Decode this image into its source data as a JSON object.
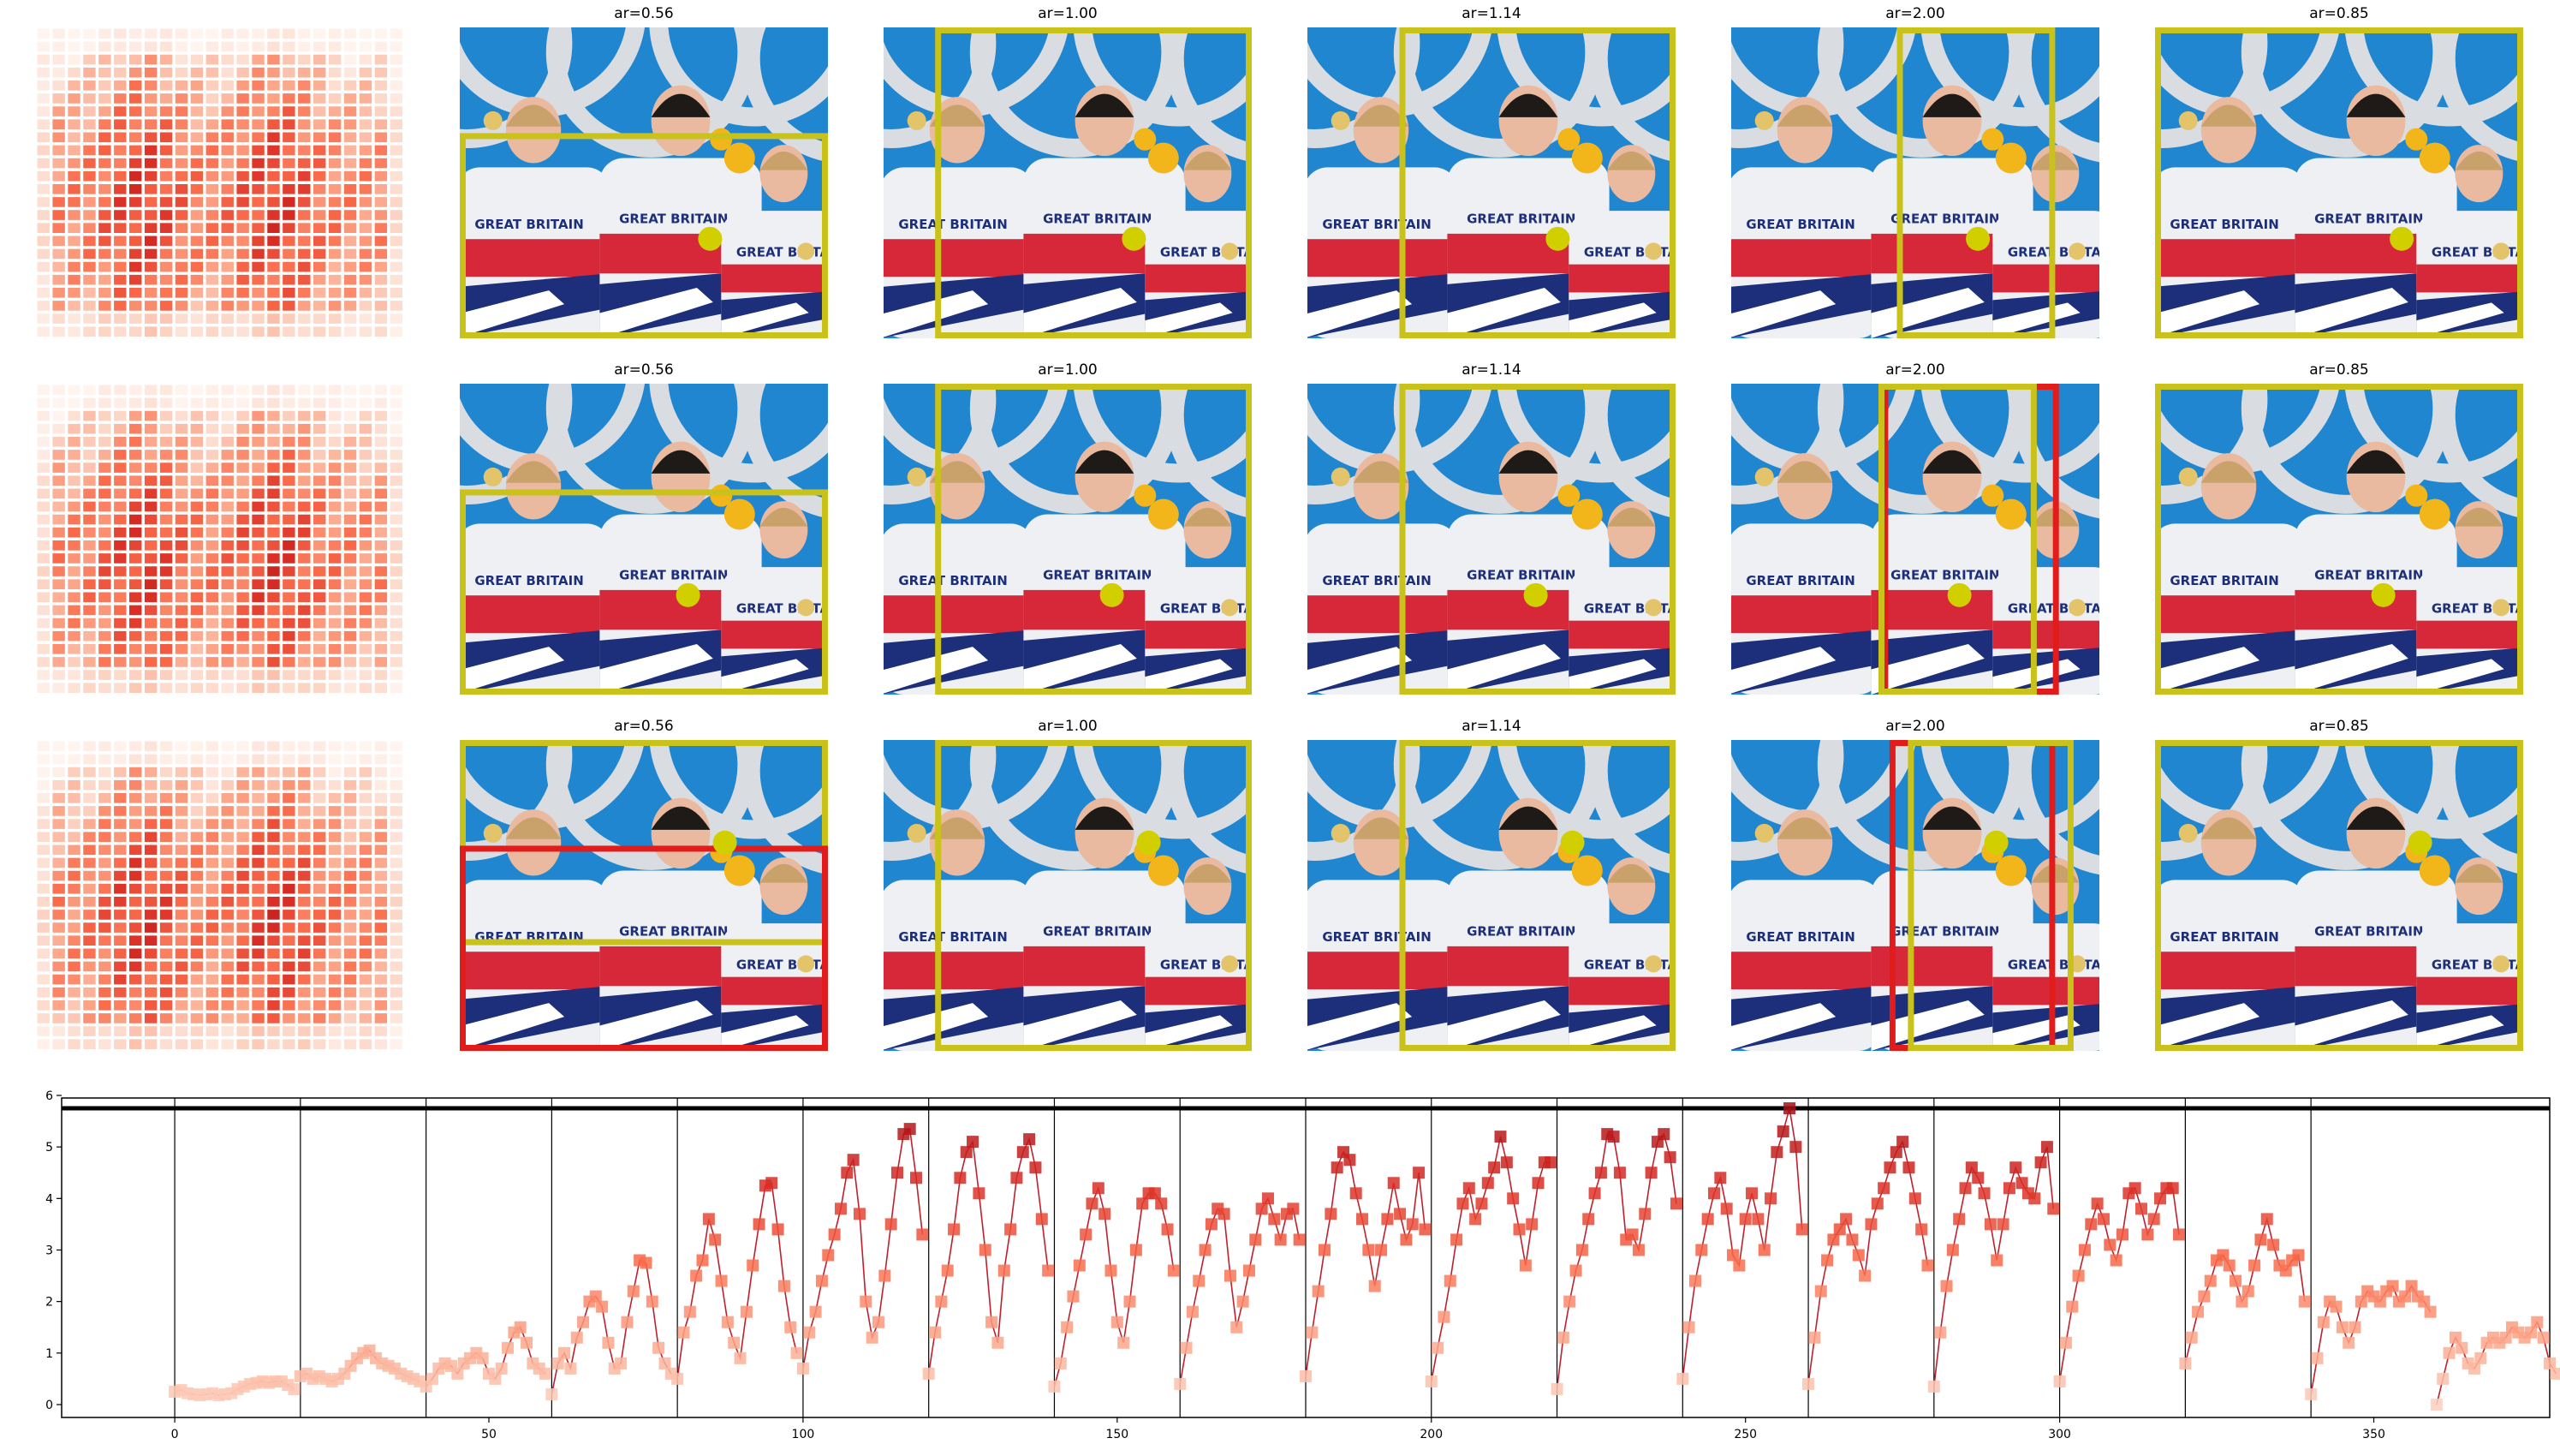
{
  "grid": {
    "rows": 3,
    "titles": [
      "",
      "ar=0.56",
      "ar=1.00",
      "ar=1.14",
      "ar=2.00",
      "ar=0.85"
    ],
    "shirt_text": "GREAT BRITAIN",
    "colors": {
      "sky": "#1f86cf",
      "ring": "#d9dde2",
      "jacket": "#eef0f3",
      "jacket_red": "#d7283a",
      "jacket_blue": "#1d2f7a",
      "skin": "#e9b9a0",
      "hair_dark": "#1e1a18",
      "hair_blonde": "#c8a26a",
      "box_yellow": "#c9c21a",
      "box_red": "#e21b1b",
      "dot_yellow": "#d2cf00",
      "sunflower": "#f2b51a",
      "medal": "#e3c46b"
    },
    "boxes": [
      [
        {
          "col": 1,
          "boxes": [
            {
              "color": "yellow",
              "x0": 0.0,
              "y0": 0.34,
              "x1": 1.0,
              "y1": 1.0
            }
          ],
          "dot": [
            0.68,
            0.68
          ]
        },
        {
          "col": 2,
          "boxes": [
            {
              "color": "yellow",
              "x0": 0.14,
              "y0": 0.0,
              "x1": 1.0,
              "y1": 1.0
            }
          ],
          "dot": [
            0.68,
            0.68
          ]
        },
        {
          "col": 3,
          "boxes": [
            {
              "color": "yellow",
              "x0": 0.25,
              "y0": 0.0,
              "x1": 1.0,
              "y1": 1.0
            }
          ],
          "dot": [
            0.68,
            0.68
          ]
        },
        {
          "col": 4,
          "boxes": [
            {
              "color": "yellow",
              "x0": 0.45,
              "y0": 0.0,
              "x1": 0.88,
              "y1": 1.0
            }
          ],
          "dot": [
            0.67,
            0.68
          ]
        },
        {
          "col": 5,
          "boxes": [
            {
              "color": "yellow",
              "x0": 0.0,
              "y0": 0.0,
              "x1": 1.0,
              "y1": 1.0
            }
          ],
          "dot": [
            0.67,
            0.68
          ]
        }
      ],
      [
        {
          "col": 1,
          "boxes": [
            {
              "color": "yellow",
              "x0": 0.0,
              "y0": 0.34,
              "x1": 1.0,
              "y1": 1.0
            }
          ],
          "dot": [
            0.62,
            0.68
          ]
        },
        {
          "col": 2,
          "boxes": [
            {
              "color": "yellow",
              "x0": 0.14,
              "y0": 0.0,
              "x1": 1.0,
              "y1": 1.0
            }
          ],
          "dot": [
            0.62,
            0.68
          ]
        },
        {
          "col": 3,
          "boxes": [
            {
              "color": "yellow",
              "x0": 0.25,
              "y0": 0.0,
              "x1": 1.0,
              "y1": 1.0
            }
          ],
          "dot": [
            0.62,
            0.68
          ]
        },
        {
          "col": 4,
          "boxes": [
            {
              "color": "red",
              "x0": 0.41,
              "y0": 0.0,
              "x1": 0.89,
              "y1": 1.0
            },
            {
              "color": "yellow",
              "x0": 0.4,
              "y0": 0.0,
              "x1": 0.83,
              "y1": 1.0
            }
          ],
          "dot": [
            0.62,
            0.68
          ]
        },
        {
          "col": 5,
          "boxes": [
            {
              "color": "yellow",
              "x0": 0.0,
              "y0": 0.0,
              "x1": 1.0,
              "y1": 1.0
            }
          ],
          "dot": [
            0.62,
            0.68
          ]
        }
      ],
      [
        {
          "col": 1,
          "boxes": [
            {
              "color": "yellow",
              "x0": 0.0,
              "y0": 0.0,
              "x1": 1.0,
              "y1": 0.66
            },
            {
              "color": "red",
              "x0": 0.0,
              "y0": 0.34,
              "x1": 1.0,
              "y1": 1.0
            }
          ],
          "dot": [
            0.72,
            0.33
          ]
        },
        {
          "col": 2,
          "boxes": [
            {
              "color": "yellow",
              "x0": 0.14,
              "y0": 0.0,
              "x1": 1.0,
              "y1": 1.0
            }
          ],
          "dot": [
            0.72,
            0.33
          ]
        },
        {
          "col": 3,
          "boxes": [
            {
              "color": "yellow",
              "x0": 0.25,
              "y0": 0.0,
              "x1": 1.0,
              "y1": 1.0
            }
          ],
          "dot": [
            0.72,
            0.33
          ]
        },
        {
          "col": 4,
          "boxes": [
            {
              "color": "red",
              "x0": 0.43,
              "y0": 0.0,
              "x1": 0.88,
              "y1": 1.0
            },
            {
              "color": "yellow",
              "x0": 0.48,
              "y0": 0.0,
              "x1": 0.93,
              "y1": 1.0
            }
          ],
          "dot": [
            0.72,
            0.33
          ]
        },
        {
          "col": 5,
          "boxes": [
            {
              "color": "yellow",
              "x0": 0.0,
              "y0": 0.0,
              "x1": 1.0,
              "y1": 1.0
            }
          ],
          "dot": [
            0.72,
            0.33
          ]
        }
      ]
    ]
  },
  "chart_data": {
    "type": "line",
    "xlim": [
      -18,
      378
    ],
    "ylim": [
      -0.25,
      5.95
    ],
    "xticks": [
      0,
      50,
      100,
      150,
      200,
      250,
      300,
      350
    ],
    "yticks": [
      0,
      1,
      2,
      3,
      4,
      5,
      6
    ],
    "vlines": [
      0,
      20,
      40,
      60,
      80,
      100,
      120,
      140,
      160,
      180,
      200,
      220,
      240,
      260,
      280,
      300,
      320,
      340
    ],
    "hline": 5.75,
    "colors": {
      "line": "#c0202c",
      "marker_low": "#fcd5c5",
      "marker_high": "#a50f15",
      "hline": "#000000",
      "vline": "#000000"
    },
    "segments": [
      [
        0.25,
        0.28,
        0.22,
        0.2,
        0.18,
        0.2,
        0.22,
        0.18,
        0.2,
        0.22,
        0.3,
        0.35,
        0.4,
        0.42,
        0.45,
        0.42,
        0.45,
        0.45,
        0.38,
        0.3
      ],
      [
        0.55,
        0.6,
        0.5,
        0.55,
        0.5,
        0.45,
        0.5,
        0.6,
        0.75,
        0.9,
        1.0,
        1.05,
        0.9,
        0.8,
        0.75,
        0.7,
        0.6,
        0.55,
        0.5,
        0.45
      ],
      [
        0.35,
        0.5,
        0.7,
        0.8,
        0.75,
        0.6,
        0.8,
        0.9,
        1.0,
        0.9,
        0.6,
        0.5,
        0.7,
        1.1,
        1.4,
        1.5,
        1.2,
        0.8,
        0.7,
        0.6
      ],
      [
        0.2,
        0.8,
        1.0,
        0.7,
        1.3,
        1.6,
        2.0,
        2.1,
        1.9,
        1.2,
        0.7,
        0.8,
        1.6,
        2.2,
        2.8,
        2.75,
        2.0,
        1.1,
        0.8,
        0.6
      ],
      [
        0.5,
        1.4,
        1.8,
        2.5,
        2.8,
        3.6,
        3.2,
        2.4,
        1.6,
        1.2,
        0.9,
        1.8,
        2.7,
        3.5,
        4.25,
        4.3,
        3.4,
        2.3,
        1.5,
        1.0
      ],
      [
        0.7,
        1.4,
        1.8,
        2.4,
        2.9,
        3.3,
        3.8,
        4.5,
        4.75,
        3.7,
        2.0,
        1.3,
        1.6,
        2.5,
        3.5,
        4.5,
        5.25,
        5.35,
        4.4,
        3.3
      ],
      [
        0.6,
        1.4,
        2.0,
        2.6,
        3.4,
        4.4,
        4.9,
        5.1,
        4.1,
        3.0,
        1.6,
        1.2,
        2.6,
        3.4,
        4.4,
        4.9,
        5.15,
        4.6,
        3.6,
        2.6
      ],
      [
        0.35,
        0.8,
        1.5,
        2.1,
        2.7,
        3.3,
        3.9,
        4.2,
        3.7,
        2.6,
        1.6,
        1.2,
        2.0,
        3.0,
        3.9,
        4.1,
        4.1,
        3.9,
        3.4,
        2.6
      ],
      [
        0.4,
        1.1,
        1.8,
        2.4,
        3.0,
        3.5,
        3.8,
        3.7,
        2.5,
        1.5,
        2.0,
        2.6,
        3.2,
        3.8,
        4.0,
        3.6,
        3.2,
        3.7,
        3.8,
        3.2
      ],
      [
        0.55,
        1.4,
        2.2,
        3.0,
        3.7,
        4.6,
        4.9,
        4.75,
        4.1,
        3.6,
        3.0,
        2.3,
        3.0,
        3.6,
        4.3,
        3.7,
        3.2,
        3.5,
        4.5,
        3.4
      ],
      [
        0.45,
        1.1,
        1.7,
        2.4,
        3.2,
        3.9,
        4.2,
        3.6,
        3.9,
        4.3,
        4.6,
        5.2,
        4.7,
        4.0,
        3.4,
        2.7,
        3.5,
        4.3,
        4.7,
        4.7
      ],
      [
        0.3,
        1.3,
        2.0,
        2.6,
        3.0,
        3.6,
        4.1,
        4.5,
        5.25,
        5.2,
        4.5,
        3.2,
        3.3,
        3.0,
        3.7,
        4.5,
        5.1,
        5.25,
        4.8,
        3.9
      ],
      [
        0.5,
        1.5,
        2.4,
        3.0,
        3.6,
        4.1,
        4.4,
        3.8,
        2.9,
        2.7,
        3.6,
        4.1,
        3.6,
        3.0,
        4.0,
        4.9,
        5.3,
        5.75,
        5.0,
        3.4
      ],
      [
        0.4,
        1.3,
        2.2,
        2.8,
        3.2,
        3.4,
        3.6,
        3.2,
        2.9,
        2.5,
        3.5,
        3.9,
        4.2,
        4.6,
        4.9,
        5.1,
        4.6,
        4.0,
        3.4,
        2.7
      ],
      [
        0.35,
        1.4,
        2.3,
        3.0,
        3.6,
        4.2,
        4.6,
        4.4,
        4.1,
        3.5,
        2.8,
        3.5,
        4.2,
        4.6,
        4.3,
        4.1,
        4.0,
        4.7,
        5.0,
        3.8
      ],
      [
        0.45,
        1.2,
        1.9,
        2.5,
        3.0,
        3.5,
        3.9,
        3.6,
        3.1,
        2.8,
        3.3,
        4.1,
        4.2,
        3.8,
        3.3,
        3.6,
        4.0,
        4.2,
        4.2,
        3.3
      ],
      [
        0.8,
        1.3,
        1.8,
        2.1,
        2.4,
        2.8,
        2.9,
        2.7,
        2.4,
        2.0,
        2.2,
        2.7,
        3.2,
        3.6,
        3.1,
        2.7,
        2.6,
        2.8,
        2.9,
        2.0
      ],
      [
        0.2,
        0.9,
        1.6,
        2.0,
        1.9,
        1.5,
        1.2,
        1.5,
        2.0,
        2.2,
        2.1,
        2.0,
        2.2,
        2.3,
        2.0,
        2.1,
        2.3,
        2.1,
        2.0,
        1.8
      ],
      [
        0.0,
        0.5,
        1.0,
        1.3,
        1.1,
        0.8,
        0.7,
        0.9,
        1.2,
        1.3,
        1.2,
        1.3,
        1.5,
        1.4,
        1.3,
        1.4,
        1.6,
        1.3,
        0.8,
        0.6
      ]
    ]
  }
}
